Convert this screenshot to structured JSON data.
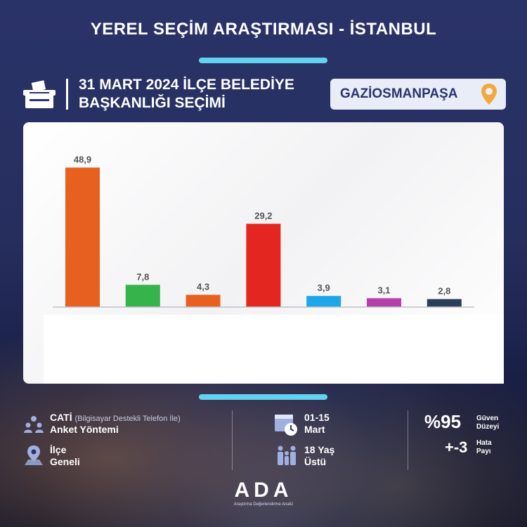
{
  "header": {
    "title": "YEREL SEÇİM ARAŞTIRMASI - İSTANBUL",
    "subtitle_line1": "31 MART 2024 İLÇE BELEDİYE",
    "subtitle_line2": "BAŞKANLIĞI SEÇİMİ",
    "district": "GAZİOSMANPAŞA"
  },
  "chart_data": {
    "type": "bar",
    "values": [
      48.9,
      7.8,
      4.3,
      29.2,
      3.9,
      3.1,
      2.8
    ],
    "value_labels": [
      "48,9",
      "7,8",
      "4,3",
      "29,2",
      "3,9",
      "3,1",
      "2,8"
    ],
    "colors": [
      "#e8601f",
      "#36b34a",
      "#e8601f",
      "#e42620",
      "#1fa6e8",
      "#b33fa8",
      "#2c3e57"
    ],
    "ylim": [
      0,
      50
    ],
    "grid": false,
    "legend": "none"
  },
  "footer": {
    "method_title": "CATİ",
    "method_note": "(Bilgisayar Destekli Telefon İle)",
    "method_label": "Anket Yöntemi",
    "scope_line1": "İlçe",
    "scope_line2": "Geneli",
    "date_line1": "01-15",
    "date_line2": "Mart",
    "age_line1": "18 Yaş",
    "age_line2": "Üstü",
    "confidence_value": "%95",
    "confidence_label1": "Güven",
    "confidence_label2": "Düzeyi",
    "margin_value": "+-3",
    "margin_label1": "Hata",
    "margin_label2": "Payı",
    "logo_text": "ADA",
    "logo_subtext": "Araştırma Değerlendirme Analiz"
  }
}
